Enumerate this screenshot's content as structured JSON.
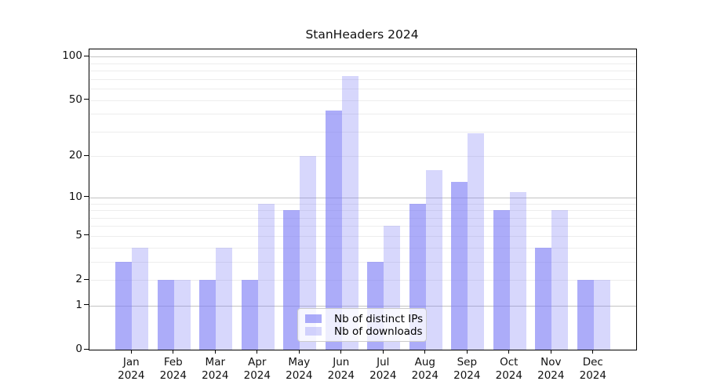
{
  "title": "StanHeaders 2024",
  "colors": {
    "ips_fill": "rgba(124,124,246,0.63)",
    "downloads_fill": "rgba(124,124,246,0.30)",
    "grid_major": "#c3c3c3",
    "grid_minor": "#ededed",
    "axis": "#000000",
    "text": "#111111",
    "legend_border": "#cccccc",
    "legend_bg": "rgba(255,255,255,0.8)"
  },
  "legend": {
    "items": [
      {
        "label": "Nb of distinct IPs",
        "key": "ips"
      },
      {
        "label": "Nb of downloads",
        "key": "downloads"
      }
    ]
  },
  "chart_data": {
    "type": "bar",
    "title": "StanHeaders 2024",
    "categories": [
      "Jan",
      "Feb",
      "Mar",
      "Apr",
      "May",
      "Jun",
      "Jul",
      "Aug",
      "Sep",
      "Oct",
      "Nov",
      "Dec"
    ],
    "x_tick_year": "2024",
    "series": [
      {
        "name": "Nb of distinct IPs",
        "key": "ips",
        "values": [
          3,
          2,
          2,
          2,
          8,
          42,
          3,
          9,
          13,
          8,
          4,
          2
        ]
      },
      {
        "name": "Nb of downloads",
        "key": "downloads",
        "values": [
          4,
          2,
          4,
          9,
          20,
          73,
          6,
          16,
          29,
          11,
          8,
          2
        ]
      }
    ],
    "yscale": "log1p",
    "ylim": [
      0,
      112
    ],
    "y_ticks": [
      0,
      1,
      2,
      5,
      10,
      20,
      50,
      100
    ],
    "y_gridlines_major": [
      1,
      10,
      100
    ],
    "y_gridlines_minor": [
      2,
      3,
      4,
      5,
      6,
      7,
      8,
      9,
      20,
      30,
      40,
      50,
      60,
      70,
      80,
      90
    ],
    "grid": true,
    "legend_position": "lower center"
  }
}
